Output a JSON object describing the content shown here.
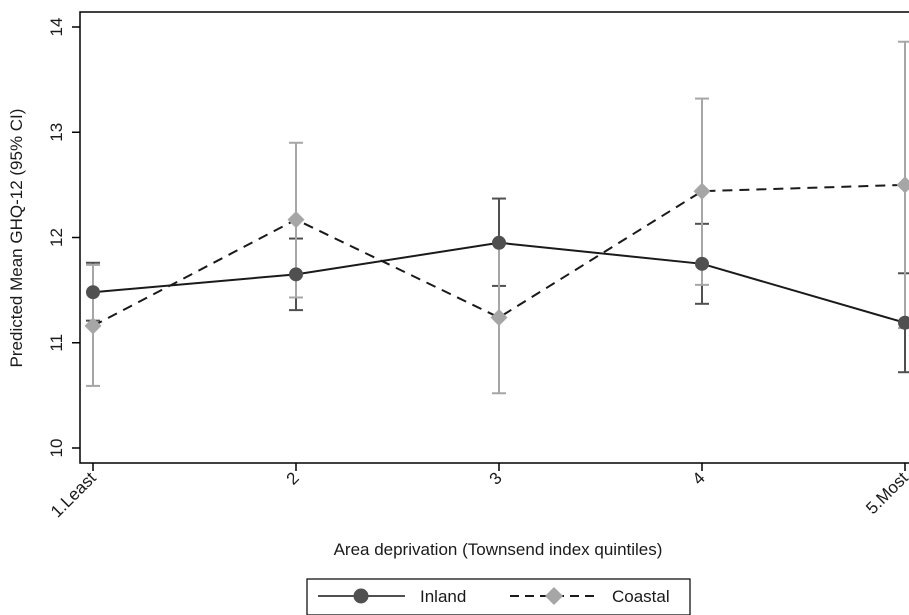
{
  "chart_data": {
    "type": "line",
    "categories": [
      "1.Least",
      "2",
      "3",
      "4",
      "5.Most"
    ],
    "x": [
      1,
      2,
      3,
      4,
      5
    ],
    "xlabel": "Area deprivation (Townsend index quintiles)",
    "ylabel": "Predicted Mean GHQ-12 (95% CI)",
    "ylim": [
      10,
      14
    ],
    "yticks": [
      "10",
      "11",
      "12",
      "13",
      "14"
    ],
    "grid": false,
    "legend_position": "bottom",
    "series": [
      {
        "name": "Inland",
        "color": "#505050",
        "line_style": "solid",
        "marker": "circle",
        "values": [
          11.48,
          11.65,
          11.95,
          11.75,
          11.19
        ],
        "ci_low": [
          11.21,
          11.31,
          11.54,
          11.37,
          10.72
        ],
        "ci_high": [
          11.76,
          11.99,
          12.37,
          12.13,
          11.66
        ]
      },
      {
        "name": "Coastal",
        "color": "#a6a6a6",
        "line_style": "dashed",
        "marker": "diamond",
        "values": [
          11.16,
          12.17,
          11.24,
          12.44,
          12.5
        ],
        "ci_low": [
          10.59,
          11.43,
          10.52,
          11.55,
          11.14
        ],
        "ci_high": [
          11.74,
          12.9,
          11.96,
          13.32,
          13.86
        ]
      }
    ]
  }
}
